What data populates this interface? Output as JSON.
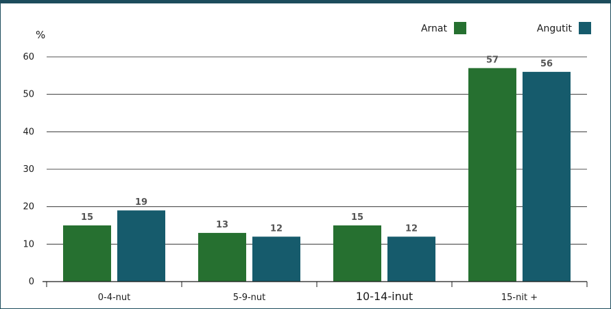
{
  "chart_data": {
    "type": "bar",
    "ylabel": "%",
    "categories": [
      "0-4-nut",
      "5-9-nut",
      "10-14-inut",
      "15-nit +"
    ],
    "series": [
      {
        "name": "Arnat",
        "color": "#267030",
        "values": [
          15,
          13,
          15,
          57
        ]
      },
      {
        "name": "Angutit",
        "color": "#165b6c",
        "values": [
          19,
          12,
          12,
          56
        ]
      }
    ],
    "ylim": [
      0,
      60
    ],
    "yticks": [
      0,
      10,
      20,
      30,
      40,
      50,
      60
    ],
    "grid": true,
    "legend": "top-right"
  }
}
